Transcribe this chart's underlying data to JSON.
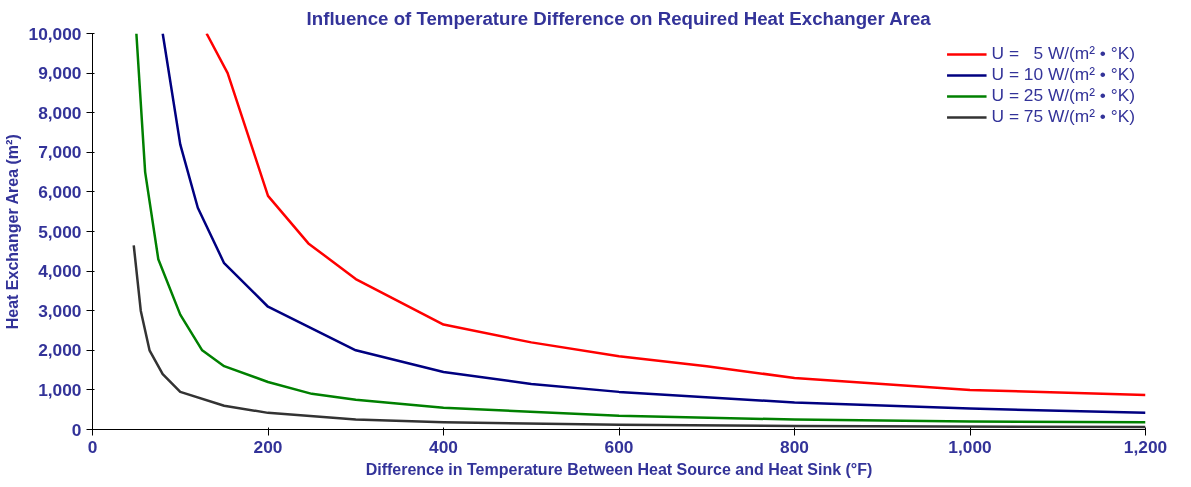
{
  "chart_data": {
    "type": "line",
    "title": "Influence of Temperature Difference on Required Heat Exchanger Area",
    "xlabel": "Difference in Temperature Between Heat Source and Heat Sink (°F)",
    "ylabel": "Heat Exchanger Area (m²)",
    "xlim": [
      0,
      1200
    ],
    "xticks": [
      0,
      200,
      400,
      600,
      800,
      {
        "value": 1000,
        "label": "1,000"
      },
      {
        "value": 1200,
        "label": "1,200"
      }
    ],
    "ylim": [
      0,
      10000
    ],
    "yticks": [
      0,
      {
        "value": 1000,
        "label": "1,000"
      },
      {
        "value": 2000,
        "label": "2,000"
      },
      {
        "value": 3000,
        "label": "3,000"
      },
      {
        "value": 4000,
        "label": "4,000"
      },
      {
        "value": 5000,
        "label": "5,000"
      },
      {
        "value": 6000,
        "label": "6,000"
      },
      {
        "value": 7000,
        "label": "7,000"
      },
      {
        "value": 8000,
        "label": "8,000"
      },
      {
        "value": 9000,
        "label": "9,000"
      },
      {
        "value": 10000,
        "label": "10,000"
      }
    ],
    "grid": false,
    "legend": "top right",
    "marker": "none",
    "line_style": "solid",
    "series": [
      {
        "name": "U =   5 W/(m² • °K)",
        "color": "#ff0000",
        "x": [
          130,
          154,
          200,
          246,
          300,
          400,
          500,
          600,
          700,
          800,
          1000,
          1200
        ],
        "values": [
          10000,
          9000,
          5900,
          4700,
          3800,
          2650,
          2200,
          1850,
          1600,
          1300,
          1000,
          870
        ]
      },
      {
        "name": "U = 10 W/(m² • °K)",
        "color": "#000080",
        "x": [
          80,
          100,
          120,
          150,
          200,
          300,
          400,
          500,
          600,
          800,
          1000,
          1200
        ],
        "values": [
          10000,
          7200,
          5600,
          4200,
          3100,
          2000,
          1450,
          1150,
          950,
          680,
          530,
          420
        ]
      },
      {
        "name": "U = 25 W/(m² • °K)",
        "color": "#008000",
        "x": [
          50,
          60,
          75,
          100,
          125,
          150,
          200,
          250,
          300,
          400,
          600,
          800,
          1000,
          1200
        ],
        "values": [
          10000,
          6500,
          4300,
          2900,
          2000,
          1600,
          1200,
          900,
          750,
          550,
          350,
          250,
          200,
          180
        ]
      },
      {
        "name": "U = 75 W/(m² • °K)",
        "color": "#333333",
        "x": [
          47,
          55,
          65,
          80,
          100,
          150,
          200,
          300,
          400,
          600,
          800,
          1200
        ],
        "values": [
          4650,
          3000,
          2000,
          1400,
          950,
          600,
          420,
          250,
          180,
          120,
          90,
          60
        ]
      }
    ]
  }
}
